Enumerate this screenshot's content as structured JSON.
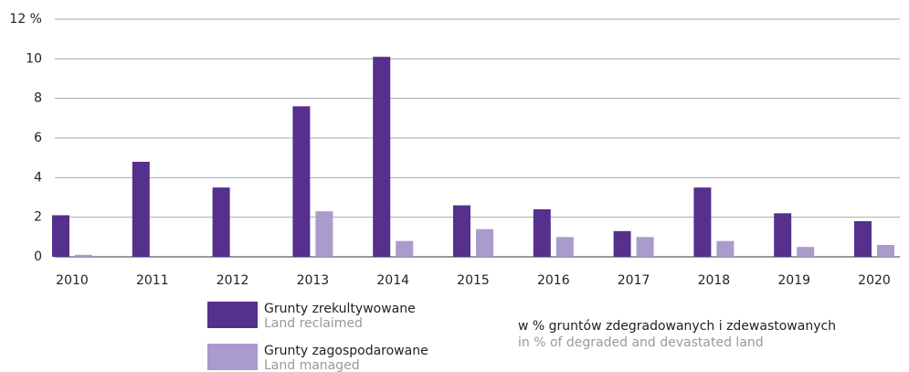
{
  "chart_data": {
    "type": "bar",
    "categories": [
      "2010",
      "2011",
      "2012",
      "2013",
      "2014",
      "2015",
      "2016",
      "2017",
      "2018",
      "2019",
      "2020"
    ],
    "series": [
      {
        "name": "Grunty zrekultywowane",
        "name_en": "Land reclaimed",
        "color": "#55308d",
        "values": [
          2.1,
          4.8,
          3.5,
          7.6,
          10.1,
          2.6,
          2.4,
          1.3,
          3.5,
          2.2,
          1.8
        ]
      },
      {
        "name": "Grunty zagospodarowane",
        "name_en": "Land managed",
        "color": "#a99bcc",
        "values": [
          0.1,
          0,
          0,
          2.3,
          0.8,
          1.4,
          1.0,
          1.0,
          0.8,
          0.5,
          0.6
        ]
      }
    ],
    "ylim": [
      0,
      12
    ],
    "yticks": [
      0,
      2,
      4,
      6,
      8,
      10,
      {
        "value": 12,
        "label": "12 %"
      }
    ],
    "grid": true,
    "note": "w % gruntów zdegradowanych i zdewastowanych",
    "note_en": "in % of degraded and devastated land"
  }
}
